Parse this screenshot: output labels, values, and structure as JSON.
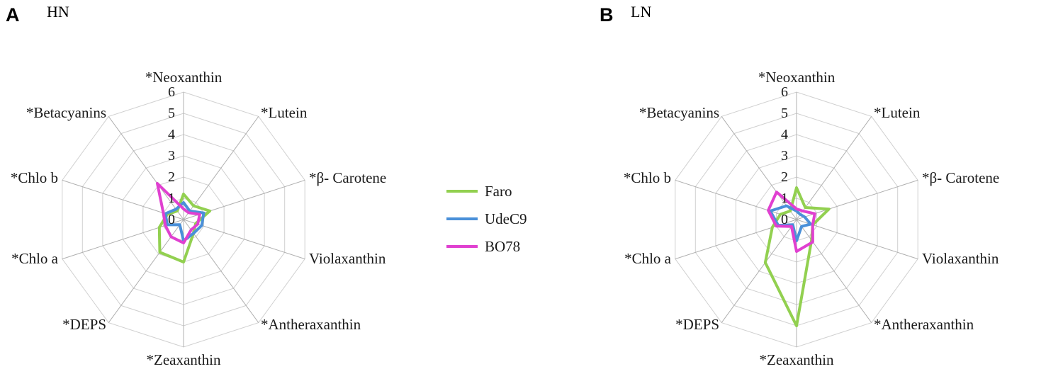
{
  "colors": {
    "Faro": "#92d050",
    "UdeC9": "#4a90d9",
    "BO78": "#e040d0"
  },
  "legend": [
    "Faro",
    "UdeC9",
    "BO78"
  ],
  "chart_data": [
    {
      "panel_letter": "A",
      "title": "HN",
      "type": "radar",
      "axes": [
        "*Neoxanthin",
        "*Lutein",
        "*β- Carotene",
        "Violaxanthin",
        "*Antheraxanthin",
        "*Zeaxanthin",
        "*DEPS",
        "*Chlo a",
        "*Chlo b",
        "*Betacyanins"
      ],
      "ticks": [
        "0",
        "1",
        "2",
        "3",
        "4",
        "5",
        "6"
      ],
      "range": [
        0,
        6
      ],
      "grid": true,
      "series": [
        {
          "name": "Faro",
          "values": [
            1.2,
            0.8,
            1.3,
            0.6,
            0.8,
            2.0,
            1.9,
            1.2,
            0.8,
            0.5
          ]
        },
        {
          "name": "UdeC9",
          "values": [
            0.8,
            0.5,
            1.0,
            0.9,
            0.8,
            1.0,
            0.3,
            0.8,
            0.9,
            0.6
          ]
        },
        {
          "name": "BO78",
          "values": [
            0.5,
            0.4,
            0.8,
            0.7,
            0.6,
            1.1,
            1.0,
            0.9,
            1.0,
            2.1
          ]
        }
      ]
    },
    {
      "panel_letter": "B",
      "title": "LN",
      "type": "radar",
      "axes": [
        "*Neoxanthin",
        "*Lutein",
        "*β- Carotene",
        "Violaxanthin",
        "*Antheraxanthin",
        "*Zeaxanthin",
        "*DEPS",
        "*Chlo a",
        "*Chlo b",
        "*Betacyanins"
      ],
      "ticks": [
        "0",
        "1",
        "2",
        "3",
        "4",
        "5",
        "6"
      ],
      "range": [
        0,
        6
      ],
      "grid": true,
      "series": [
        {
          "name": "Faro",
          "values": [
            1.5,
            0.7,
            1.6,
            0.8,
            1.2,
            5.0,
            2.5,
            1.2,
            0.8,
            0.5
          ]
        },
        {
          "name": "UdeC9",
          "values": [
            0.4,
            0.3,
            0.4,
            0.7,
            0.4,
            1.0,
            0.3,
            0.9,
            1.3,
            0.8
          ]
        },
        {
          "name": "BO78",
          "values": [
            0.5,
            0.5,
            0.9,
            0.8,
            1.3,
            1.5,
            0.4,
            1.0,
            1.4,
            1.6
          ]
        }
      ]
    }
  ]
}
